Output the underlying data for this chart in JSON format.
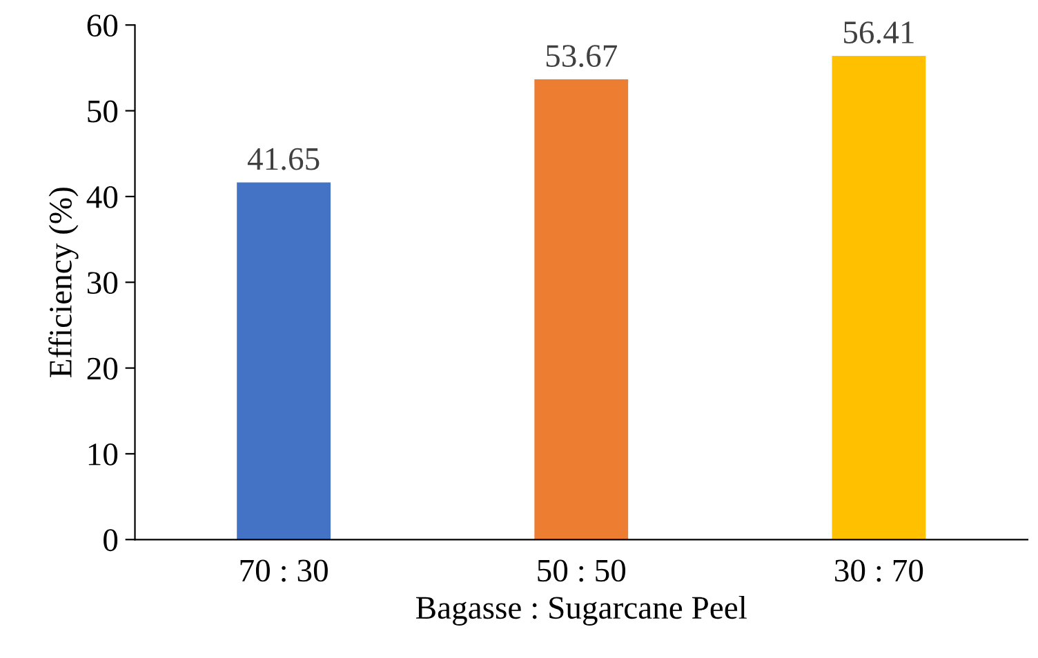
{
  "chart_data": {
    "type": "bar",
    "xlabel": "Bagasse : Sugarcane Peel",
    "ylabel": "Efficiency (%)",
    "categories": [
      "70 : 30",
      "50 : 50",
      "30 : 70"
    ],
    "values": [
      41.65,
      53.67,
      56.41
    ],
    "colors": [
      "#4472c4",
      "#ed7d31",
      "#ffc000"
    ],
    "ylim": [
      0,
      60
    ],
    "yticks": [
      0,
      10,
      20,
      30,
      40,
      50,
      60
    ],
    "data_labels": true,
    "grid": false,
    "legend": false
  }
}
